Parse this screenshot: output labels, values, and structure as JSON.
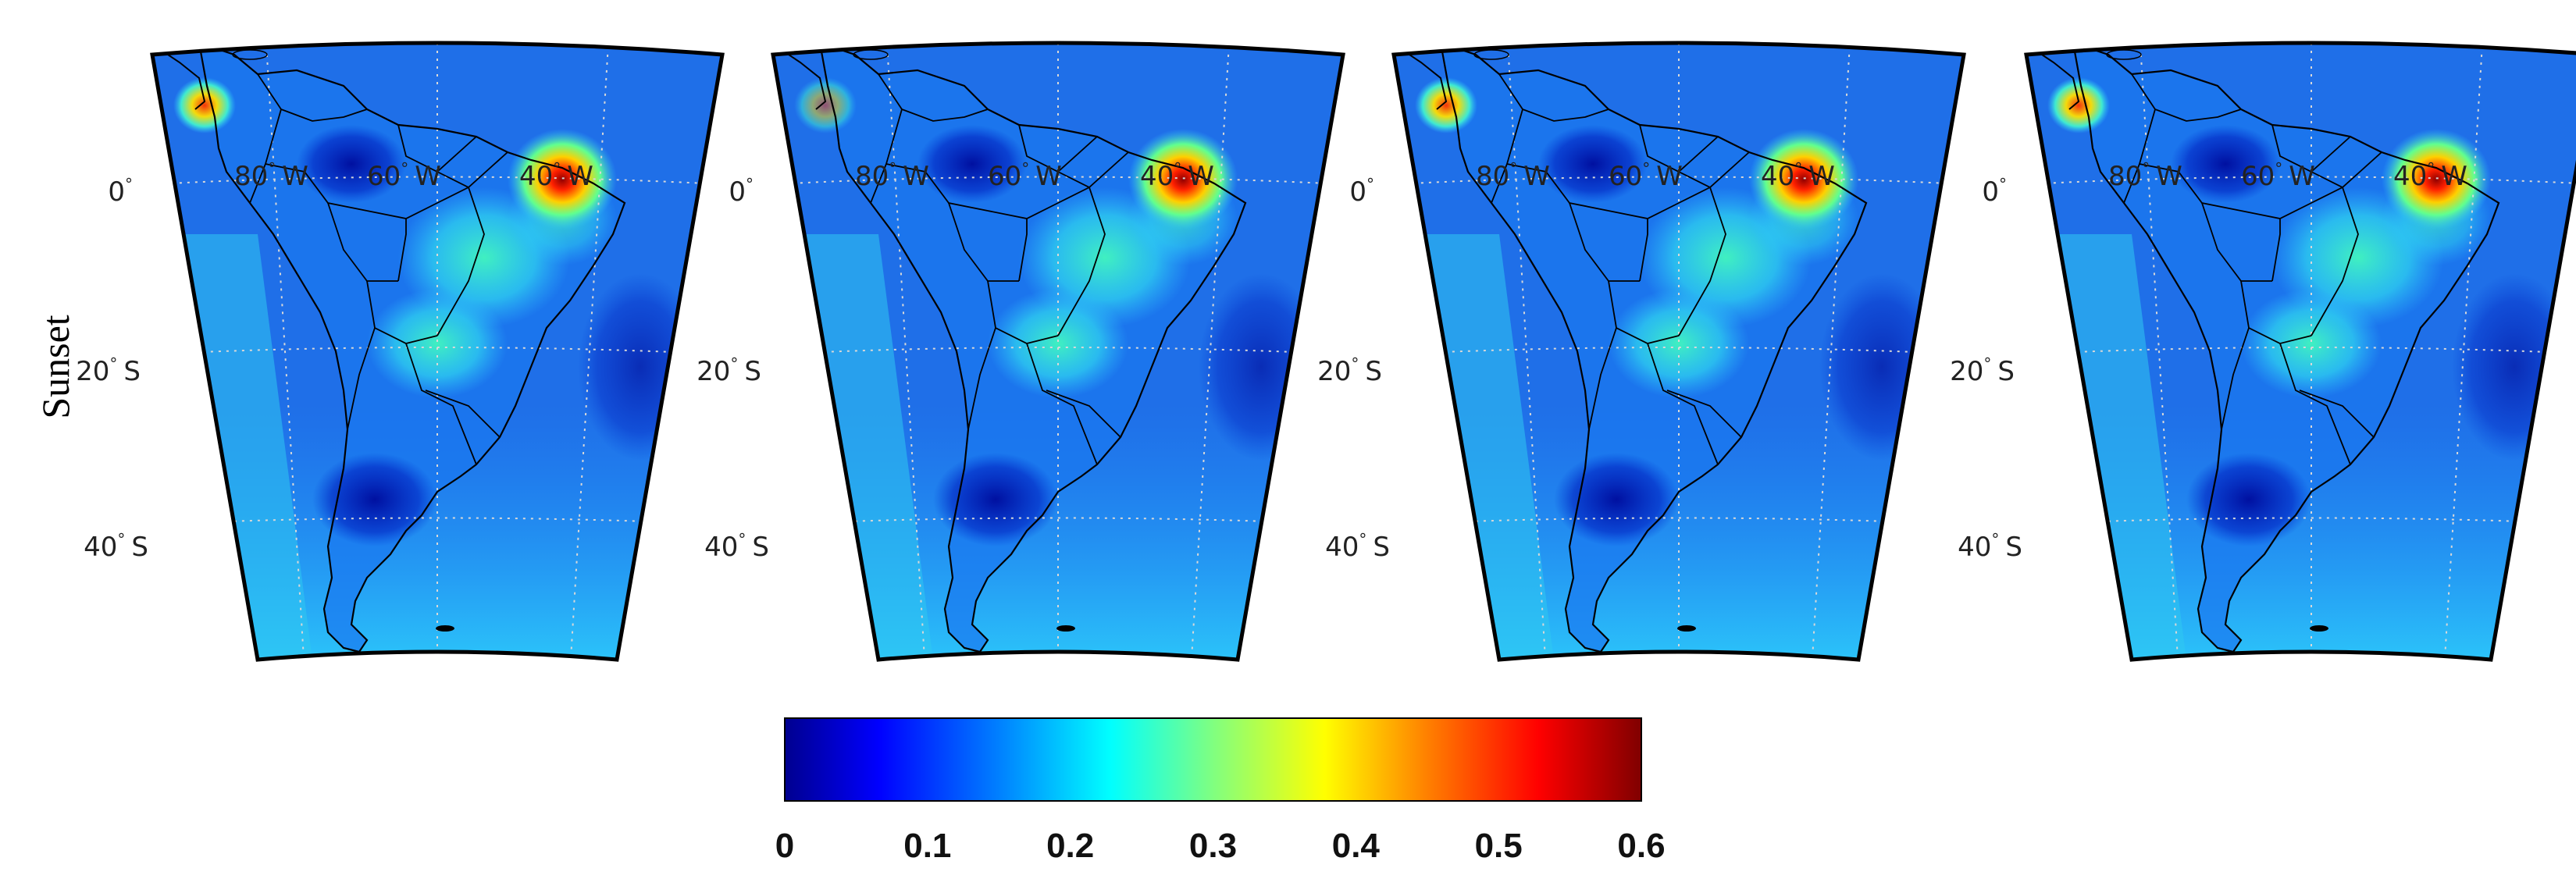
{
  "row_label": "Sunset",
  "panels": [
    {
      "id": "panel-1",
      "lat_labels": [
        "0",
        "20",
        "40"
      ],
      "lat_hemispheres": [
        "",
        "S",
        "S"
      ],
      "lon_labels": [
        "80",
        "60",
        "40"
      ],
      "lon_hemisphere": "W",
      "degree_symbol": "°"
    },
    {
      "id": "panel-2",
      "lat_labels": [
        "0",
        "20",
        "40"
      ],
      "lat_hemispheres": [
        "",
        "S",
        "S"
      ],
      "lon_labels": [
        "80",
        "60",
        "40"
      ],
      "lon_hemisphere": "W",
      "degree_symbol": "°"
    },
    {
      "id": "panel-3",
      "lat_labels": [
        "0",
        "20",
        "40"
      ],
      "lat_hemispheres": [
        "",
        "S",
        "S"
      ],
      "lon_labels": [
        "80",
        "60",
        "40"
      ],
      "lon_hemisphere": "W",
      "degree_symbol": "°"
    },
    {
      "id": "panel-4",
      "lat_labels": [
        "0",
        "20",
        "40"
      ],
      "lat_hemispheres": [
        "",
        "S",
        "S"
      ],
      "lon_labels": [
        "80",
        "60",
        "40"
      ],
      "lon_hemisphere": "W",
      "degree_symbol": "°"
    }
  ],
  "colorbar": {
    "colormap": "jet",
    "colors": [
      "#00008f",
      "#0000ff",
      "#0080ff",
      "#00ffff",
      "#80ff80",
      "#ffff00",
      "#ff8000",
      "#ff0000",
      "#800000"
    ],
    "ticks": [
      "0",
      "0.1",
      "0.2",
      "0.3",
      "0.4",
      "0.5",
      "0.6"
    ],
    "range": [
      0,
      0.6
    ]
  },
  "map_colors": {
    "background_ocean": "#1f6fe8",
    "low": "#1030d0",
    "mid": "#2ad0f0",
    "high": "#f0f020",
    "peak": "#a00000",
    "coastline": "#000000",
    "gridline": "#d8d8d8"
  }
}
